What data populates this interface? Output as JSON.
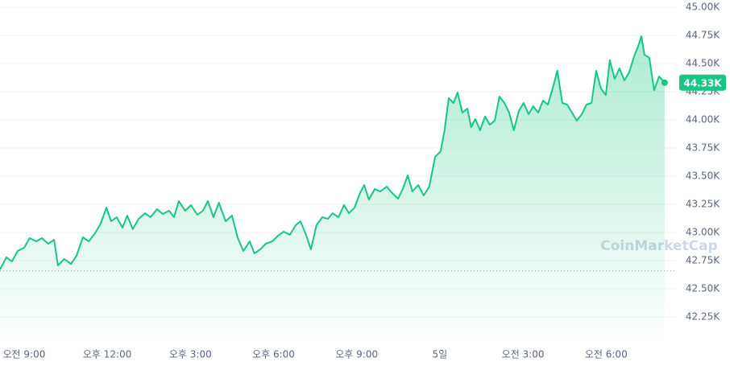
{
  "chart_data": {
    "type": "line",
    "x": [
      -0.87,
      -0.64,
      -0.44,
      -0.23,
      0,
      0.2,
      0.44,
      0.64,
      0.87,
      1.08,
      1.22,
      1.45,
      1.69,
      1.89,
      2.12,
      2.33,
      2.56,
      2.76,
      2.97,
      3.14,
      3.34,
      3.55,
      3.72,
      3.92,
      4.13,
      4.36,
      4.56,
      4.8,
      5,
      5.23,
      5.41,
      5.58,
      5.81,
      6.02,
      6.25,
      6.45,
      6.63,
      6.83,
      7.03,
      7.27,
      7.5,
      7.7,
      7.91,
      8.14,
      8.31,
      8.52,
      8.72,
      8.95,
      9.16,
      9.36,
      9.59,
      9.8,
      9.97,
      10.17,
      10.35,
      10.55,
      10.76,
      10.96,
      11.13,
      11.34,
      11.54,
      11.72,
      11.92,
      12.12,
      12.27,
      12.44,
      12.65,
      12.85,
      13.08,
      13.28,
      13.49,
      13.66,
      13.84,
      14.01,
      14.22,
      14.42,
      14.62,
      14.83,
      15.03,
      15.17,
      15.32,
      15.49,
      15.64,
      15.81,
      15.99,
      16.13,
      16.28,
      16.45,
      16.63,
      16.8,
      16.98,
      17.15,
      17.33,
      17.5,
      17.67,
      17.85,
      18.02,
      18.2,
      18.37,
      18.55,
      18.72,
      18.9,
      19.07,
      19.24,
      19.42,
      19.59,
      19.77,
      19.94,
      20.12,
      20.29,
      20.47,
      20.64,
      20.81,
      20.99,
      21.13,
      21.31,
      21.48,
      21.66,
      21.83,
      22.01,
      22.15,
      22.27,
      22.38,
      22.56,
      22.73,
      22.91,
      23.11
    ],
    "series": [
      {
        "color": "#16c784",
        "values": [
          42671,
          42779,
          42743,
          42836,
          42864,
          42950,
          42921,
          42950,
          42900,
          42936,
          42707,
          42764,
          42721,
          42793,
          42957,
          42921,
          42993,
          43079,
          43221,
          43100,
          43136,
          43043,
          43150,
          43029,
          43121,
          43171,
          43136,
          43207,
          43164,
          43193,
          43136,
          43279,
          43193,
          43243,
          43157,
          43193,
          43279,
          43136,
          43264,
          43100,
          43150,
          42957,
          42836,
          42921,
          42814,
          42850,
          42900,
          42921,
          42971,
          43007,
          42979,
          43064,
          43100,
          42979,
          42850,
          43064,
          43136,
          43121,
          43171,
          43136,
          43243,
          43171,
          43221,
          43350,
          43421,
          43293,
          43386,
          43364,
          43407,
          43350,
          43300,
          43386,
          43507,
          43364,
          43421,
          43329,
          43407,
          43671,
          43721,
          43907,
          44193,
          44150,
          44243,
          44064,
          44100,
          43936,
          44007,
          43907,
          44029,
          43957,
          43993,
          44207,
          44150,
          44064,
          43907,
          44079,
          44150,
          44050,
          44121,
          44064,
          44171,
          44136,
          44279,
          44436,
          44150,
          44136,
          44064,
          43993,
          44050,
          44136,
          44150,
          44436,
          44279,
          44221,
          44529,
          44364,
          44457,
          44350,
          44421,
          44564,
          44650,
          44743,
          44579,
          44550,
          44264,
          44386,
          44330
        ]
      }
    ],
    "current_price": {
      "value": 44330,
      "label": "44.33K"
    },
    "baseline": 42660,
    "xlim": [
      -0.87,
      23.55
    ],
    "xticks": [
      {
        "value": 0,
        "label": "오전 9:00"
      },
      {
        "value": 3,
        "label": "오후 12:00"
      },
      {
        "value": 6,
        "label": "오후 3:00"
      },
      {
        "value": 9,
        "label": "오후 6:00"
      },
      {
        "value": 12,
        "label": "오후 9:00"
      },
      {
        "value": 15,
        "label": "5일"
      },
      {
        "value": 18,
        "label": "오전 3:00"
      },
      {
        "value": 21,
        "label": "오전 6:00"
      }
    ],
    "ylim": [
      42000,
      45000
    ],
    "yticks": [
      {
        "value": 42250,
        "label": "42.25K"
      },
      {
        "value": 42500,
        "label": "42.50K"
      },
      {
        "value": 42750,
        "label": "42.75K"
      },
      {
        "value": 43000,
        "label": "43.00K"
      },
      {
        "value": 43250,
        "label": "43.25K"
      },
      {
        "value": 43500,
        "label": "43.50K"
      },
      {
        "value": 43750,
        "label": "43.75K"
      },
      {
        "value": 44000,
        "label": "44.00K"
      },
      {
        "value": 44250,
        "label": "44.25K"
      },
      {
        "value": 44500,
        "label": "44.50K"
      },
      {
        "value": 44750,
        "label": "44.75K"
      },
      {
        "value": 45000,
        "label": "45.00K"
      }
    ],
    "grid": true,
    "watermark": "CoinMarketCap"
  }
}
